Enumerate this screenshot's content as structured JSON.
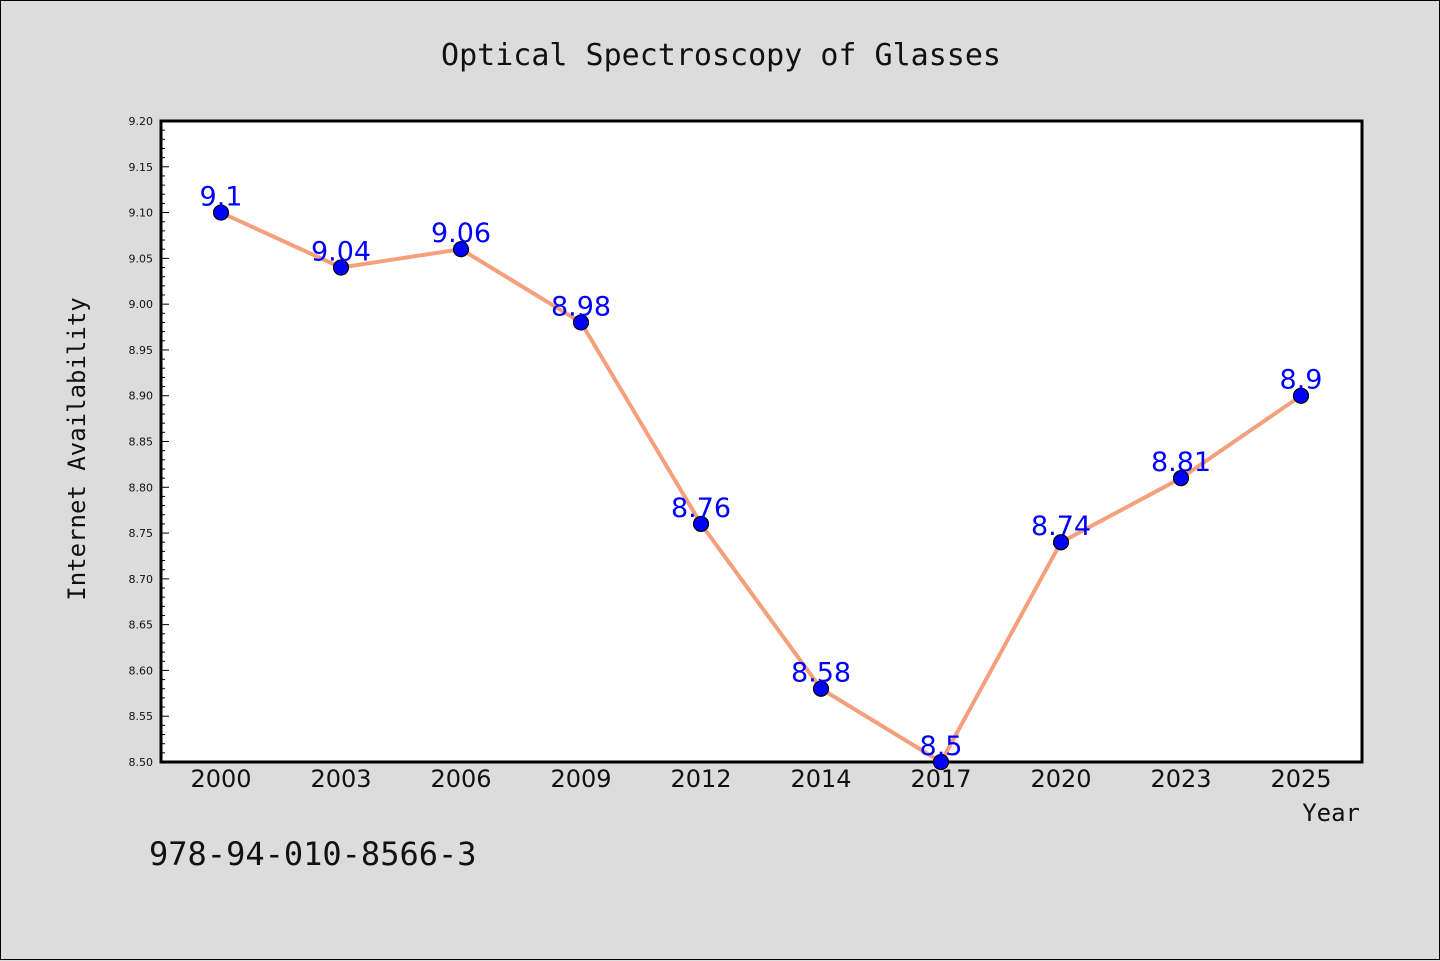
{
  "chart_data": {
    "type": "line",
    "title": "Optical Spectroscopy of Glasses",
    "xlabel": "Year",
    "ylabel": "Internet Availability",
    "categories": [
      "2000",
      "2003",
      "2006",
      "2009",
      "2012",
      "2014",
      "2017",
      "2020",
      "2023",
      "2025"
    ],
    "series": [
      {
        "values": [
          9.1,
          9.04,
          9.06,
          8.98,
          8.76,
          8.58,
          8.5,
          8.74,
          8.81,
          8.9
        ],
        "data_labels": [
          "9.1",
          "9.04",
          "9.06",
          "8.98",
          "8.76",
          "8.58",
          "8.5",
          "8.74",
          "8.81",
          "8.9"
        ]
      }
    ],
    "ylim": [
      8.5,
      9.2
    ],
    "yticks": [
      "8.50",
      "8.55",
      "8.60",
      "8.65",
      "8.70",
      "8.75",
      "8.80",
      "8.85",
      "8.90",
      "8.95",
      "9.00",
      "9.05",
      "9.10",
      "9.15",
      "9.20"
    ],
    "grid": false,
    "legend": "none",
    "line_color": "#f4a07c",
    "marker_color": "#0000ff",
    "label_color": "#0000ff"
  },
  "footnote": "978-94-010-8566-3"
}
